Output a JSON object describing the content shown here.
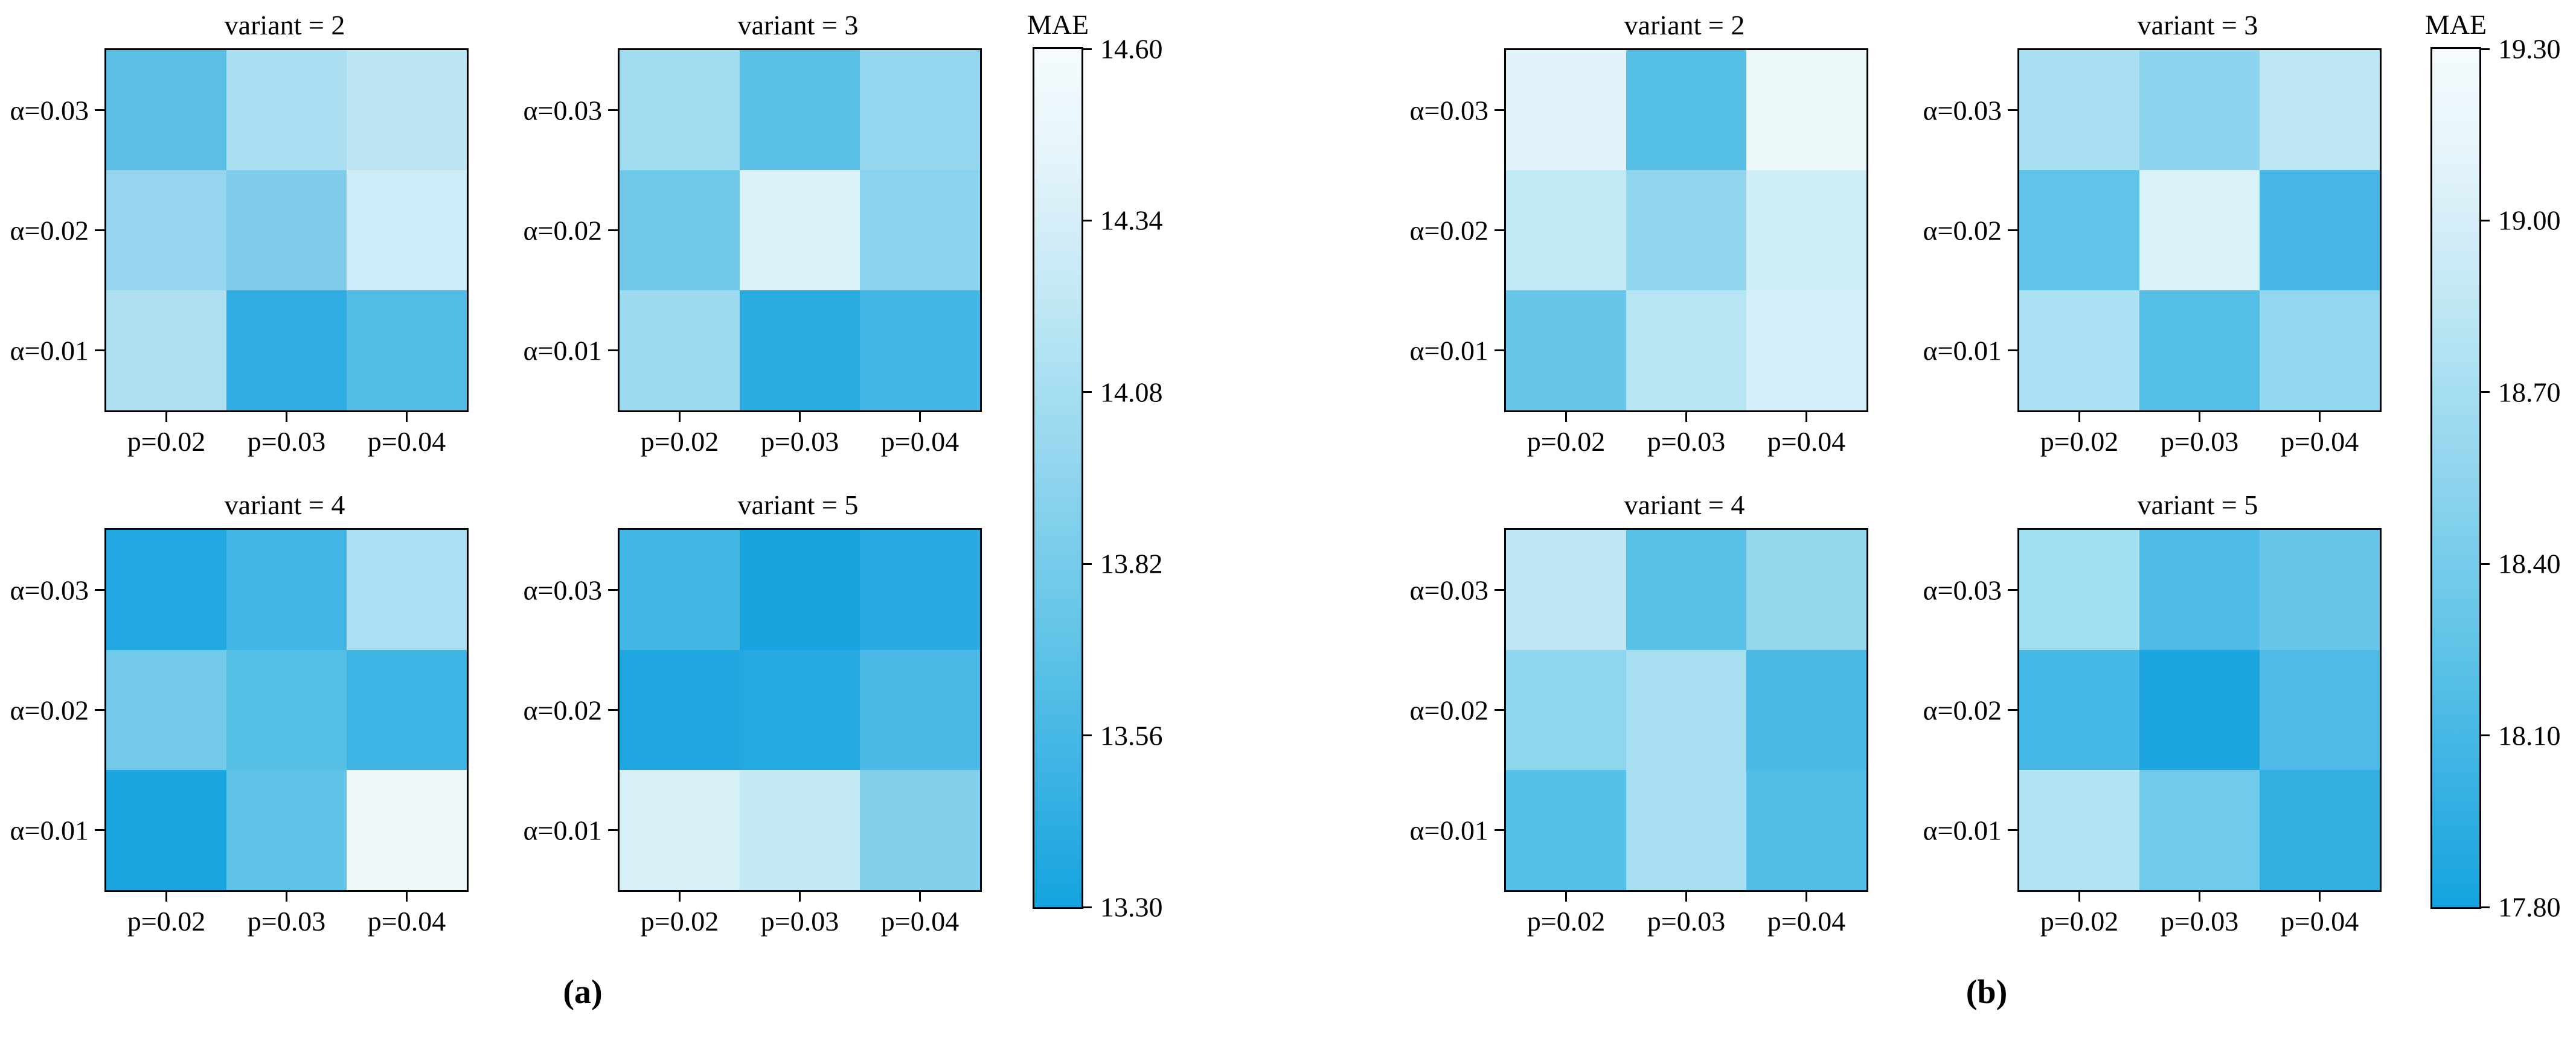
{
  "figure": {
    "background": "#ffffff",
    "axis_color": "#000000",
    "colormap_stops_top_to_bottom": [
      "#f5fbfd",
      "#e9f6fb",
      "#d6eef8",
      "#bfe7f4",
      "#a5def1",
      "#8fd4ee",
      "#76ccea",
      "#5fc3e7",
      "#47b8e5",
      "#2fade1",
      "#14a4df"
    ]
  },
  "chart_data": {
    "type": "heatmap",
    "panels": [
      {
        "id": "a",
        "caption": "(a)",
        "colorbar": {
          "title": "MAE",
          "vmin": 13.3,
          "vmax": 14.6,
          "tick_labels": [
            "14.60",
            "14.34",
            "14.08",
            "13.82",
            "13.56",
            "13.30"
          ]
        },
        "subplots": [
          {
            "title": "variant = 2",
            "row_labels": [
              "α=0.03",
              "α=0.02",
              "α=0.01"
            ],
            "col_labels": [
              "p=0.02",
              "p=0.03",
              "p=0.04"
            ],
            "values": [
              [
                13.73,
                14.17,
                14.28
              ],
              [
                14.06,
                13.92,
                14.38
              ],
              [
                14.2,
                13.47,
                13.67
              ]
            ],
            "cell_colors": [
              [
                "#5cc0e6",
                "#a9def1",
                "#bbe5f3"
              ],
              [
                "#95d6ee",
                "#7eccea",
                "#cdecf7"
              ],
              [
                "#aee0f2",
                "#2fade2",
                "#52bce6"
              ]
            ]
          },
          {
            "title": "variant = 3",
            "row_labels": [
              "α=0.03",
              "α=0.02",
              "α=0.01"
            ],
            "col_labels": [
              "p=0.02",
              "p=0.03",
              "p=0.04"
            ],
            "values": [
              [
                14.13,
                13.72,
                14.05
              ],
              [
                13.84,
                14.47,
                13.99
              ],
              [
                14.11,
                13.44,
                13.59
              ]
            ],
            "cell_colors": [
              [
                "#a2dcf0",
                "#5ac1e7",
                "#93d6ee"
              ],
              [
                "#70c8e9",
                "#ddf1f9",
                "#8ad2ed"
              ],
              [
                "#9fdbf0",
                "#2aace1",
                "#44b6e4"
              ]
            ]
          },
          {
            "title": "variant = 4",
            "row_labels": [
              "α=0.03",
              "α=0.02",
              "α=0.01"
            ],
            "col_labels": [
              "p=0.02",
              "p=0.03",
              "p=0.04"
            ],
            "values": [
              [
                13.39,
                13.57,
                14.18
              ],
              [
                13.85,
                13.69,
                13.55
              ],
              [
                13.36,
                13.74,
                14.57
              ]
            ],
            "cell_colors": [
              [
                "#22a8e0",
                "#41b5e4",
                "#abdff2"
              ],
              [
                "#72c9e9",
                "#55bfe6",
                "#3eb4e4"
              ],
              [
                "#1ca5df",
                "#5ec3e7",
                "#eef8fb"
              ]
            ]
          },
          {
            "title": "variant = 5",
            "row_labels": [
              "α=0.03",
              "α=0.02",
              "α=0.01"
            ],
            "col_labels": [
              "p=0.02",
              "p=0.03",
              "p=0.04"
            ],
            "values": [
              [
                13.58,
                13.35,
                13.44
              ],
              [
                13.39,
                13.41,
                13.62
              ],
              [
                14.44,
                14.32,
                13.95
              ]
            ],
            "cell_colors": [
              [
                "#43b6e4",
                "#1aa4df",
                "#2baae1"
              ],
              [
                "#21a7e0",
                "#25a9e1",
                "#4ab9e5"
              ],
              [
                "#d7f0f8",
                "#c3e9f5",
                "#82cfec"
              ]
            ]
          }
        ]
      },
      {
        "id": "b",
        "caption": "(b)",
        "colorbar": {
          "title": "MAE",
          "vmin": 17.8,
          "vmax": 19.3,
          "tick_labels": [
            "19.30",
            "19.00",
            "18.70",
            "18.40",
            "18.10",
            "17.80"
          ]
        },
        "subplots": [
          {
            "title": "variant = 2",
            "row_labels": [
              "α=0.03",
              "α=0.02",
              "α=0.01"
            ],
            "col_labels": [
              "p=0.02",
              "p=0.03",
              "p=0.04"
            ],
            "values": [
              [
                19.19,
                18.26,
                19.26
              ],
              [
                18.96,
                18.65,
                19.06
              ],
              [
                18.37,
                18.91,
                19.1
              ]
            ],
            "cell_colors": [
              [
                "#e2f4fa",
                "#57c0e7",
                "#edf8fb"
              ],
              [
                "#c0e8f5",
                "#92d6ee",
                "#cfedf7"
              ],
              [
                "#67c6e9",
                "#b8e5f4",
                "#d5eff8"
              ]
            ]
          },
          {
            "title": "variant = 3",
            "row_labels": [
              "α=0.03",
              "α=0.02",
              "α=0.01"
            ],
            "col_labels": [
              "p=0.02",
              "p=0.03",
              "p=0.04"
            ],
            "values": [
              [
                18.8,
                18.62,
                18.93
              ],
              [
                18.32,
                19.13,
                18.15
              ],
              [
                18.82,
                18.24,
                18.66
              ]
            ],
            "cell_colors": [
              [
                "#a8e0f2",
                "#8dd5ee",
                "#bce6f4"
              ],
              [
                "#60c4e8",
                "#daf1f9",
                "#47b8e5"
              ],
              [
                "#abe1f2",
                "#54bee6",
                "#93d7ee"
              ]
            ]
          },
          {
            "title": "variant = 4",
            "row_labels": [
              "α=0.03",
              "α=0.02",
              "α=0.01"
            ],
            "col_labels": [
              "p=0.02",
              "p=0.03",
              "p=0.04"
            ],
            "values": [
              [
                18.95,
                18.28,
                18.67
              ],
              [
                18.63,
                18.8,
                18.17
              ],
              [
                18.26,
                18.8,
                18.23
              ]
            ],
            "cell_colors": [
              [
                "#bee7f5",
                "#5ac1e7",
                "#95d8ee"
              ],
              [
                "#8ed5ed",
                "#a8e0f1",
                "#4abae5"
              ],
              [
                "#57c0e7",
                "#a8e0f1",
                "#53bde6"
              ]
            ]
          },
          {
            "title": "variant = 5",
            "row_labels": [
              "α=0.03",
              "α=0.02",
              "α=0.01"
            ],
            "col_labels": [
              "p=0.02",
              "p=0.03",
              "p=0.04"
            ],
            "values": [
              [
                18.76,
                18.2,
                18.37
              ],
              [
                18.15,
                17.86,
                18.19
              ],
              [
                18.85,
                18.44,
                18.01
              ]
            ],
            "cell_colors": [
              [
                "#a2dff1",
                "#4ebce6",
                "#68c7e9"
              ],
              [
                "#46b8e5",
                "#1ba6df",
                "#4dbbe6"
              ],
              [
                "#b0e3f3",
                "#72caea",
                "#32b0e2"
              ]
            ]
          }
        ]
      }
    ]
  }
}
